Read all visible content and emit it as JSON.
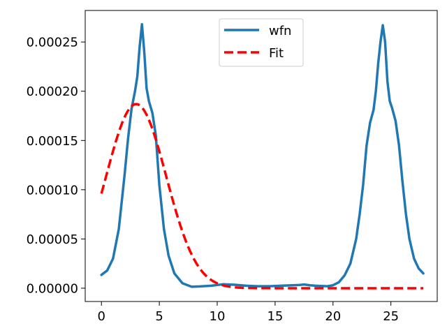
{
  "chart_data": {
    "type": "line",
    "title": "",
    "xlabel": "",
    "ylabel": "",
    "xlim": [
      -1.4,
      29.0
    ],
    "ylim": [
      -1.35e-05,
      0.000282
    ],
    "xticks": [
      0,
      5,
      10,
      15,
      20,
      25
    ],
    "xtick_labels": [
      "0",
      "5",
      "10",
      "15",
      "20",
      "25"
    ],
    "yticks": [
      0.0,
      5e-05,
      0.0001,
      0.00015,
      0.0002,
      0.00025
    ],
    "ytick_labels": [
      "0.00000",
      "0.00005",
      "0.00010",
      "0.00015",
      "0.00020",
      "0.00025"
    ],
    "grid": false,
    "legend": {
      "position": "upper center",
      "entries": [
        "wfn",
        "Fit"
      ]
    },
    "series": [
      {
        "name": "wfn",
        "color": "#1f77b4",
        "style": "solid",
        "x": [
          0,
          0.5,
          1.0,
          1.5,
          2.0,
          2.3,
          2.6,
          2.9,
          3.1,
          3.3,
          3.5,
          3.7,
          3.9,
          4.1,
          4.4,
          4.7,
          5.0,
          5.4,
          5.8,
          6.3,
          7.0,
          7.8,
          8.5,
          9.5,
          10.5,
          11.5,
          12.5,
          13.5,
          14.5,
          15.5,
          16.5,
          17.0,
          17.5,
          18.0,
          18.5,
          19.5,
          20.0,
          20.5,
          21.0,
          21.5,
          22.0,
          22.3,
          22.6,
          22.9,
          23.2,
          23.5,
          23.7,
          23.9,
          24.1,
          24.3,
          24.5,
          24.7,
          24.9,
          25.1,
          25.4,
          25.7,
          26.0,
          26.3,
          26.6,
          27.0,
          27.4,
          27.8
        ],
        "y": [
          1.35e-05,
          1.8e-05,
          3e-05,
          6e-05,
          0.000115,
          0.000152,
          0.000182,
          0.0002,
          0.000215,
          0.000245,
          0.000268,
          0.00024,
          0.000203,
          0.00019,
          0.000178,
          0.000155,
          0.000105,
          6e-05,
          3.3e-05,
          1.5e-05,
          5e-06,
          1.5e-06,
          1.8e-06,
          2.5e-06,
          4e-06,
          3.5e-06,
          2.5e-06,
          2e-06,
          2e-06,
          2.5e-06,
          3e-06,
          3.2e-06,
          3.8e-06,
          3e-06,
          2.5e-06,
          2e-06,
          3e-06,
          6e-06,
          1.3e-05,
          2.5e-05,
          5e-05,
          7.5e-05,
          0.000105,
          0.000145,
          0.000168,
          0.000181,
          0.0002,
          0.000228,
          0.00025,
          0.000267,
          0.00025,
          0.00021,
          0.00019,
          0.000183,
          0.00017,
          0.000145,
          0.000108,
          7.5e-05,
          5e-05,
          3e-05,
          2e-05,
          1.5e-05
        ]
      },
      {
        "name": "Fit",
        "color": "#ff0000",
        "style": "dashed",
        "gaussian": {
          "amplitude": 0.000187,
          "mean": 3.0,
          "sigma": 2.6
        },
        "x_range": [
          0,
          27.8
        ]
      }
    ]
  }
}
